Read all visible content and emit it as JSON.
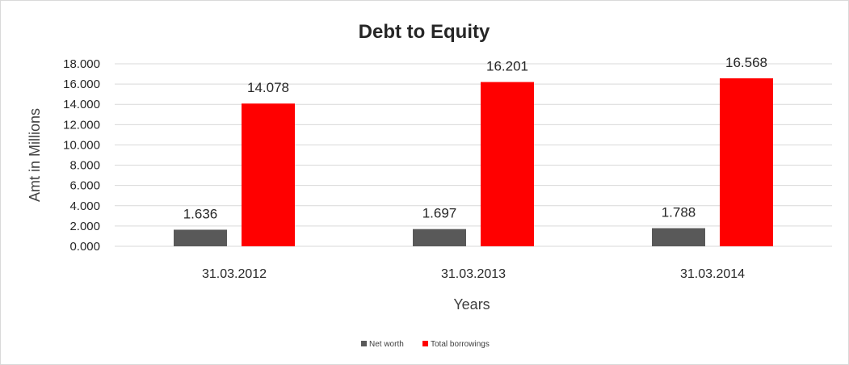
{
  "chart_data": {
    "type": "bar",
    "title": "Debt to Equity",
    "xlabel": "Years",
    "ylabel": "Amt in Millions",
    "categories": [
      "31.03.2012",
      "31.03.2013",
      "31.03.2014"
    ],
    "series": [
      {
        "name": "Net worth",
        "values": [
          1.636,
          1.697,
          1.788
        ],
        "labels": [
          "1.636",
          "1.697",
          "1.788"
        ],
        "color": "#595959"
      },
      {
        "name": "Total borrowings",
        "values": [
          14.078,
          16.201,
          16.568
        ],
        "labels": [
          "14.078",
          "16.201",
          "16.568"
        ],
        "color": "#ff0000"
      }
    ],
    "ylim": [
      0,
      18
    ],
    "yticks": [
      "0.000",
      "2.000",
      "4.000",
      "6.000",
      "8.000",
      "10.000",
      "12.000",
      "14.000",
      "16.000",
      "18.000"
    ],
    "grid": true,
    "legend": "bottom"
  }
}
